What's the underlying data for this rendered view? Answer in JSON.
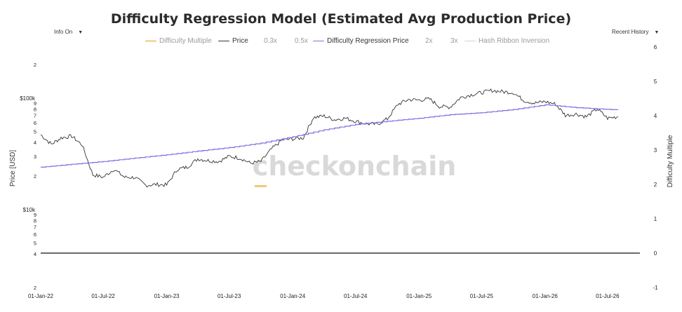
{
  "title": "Difficulty Regression Model (Estimated Avg Production Price)",
  "controls": {
    "info": "Info On",
    "history": "Recent History"
  },
  "watermark": "checkonchain",
  "colors": {
    "price": "#333333",
    "regression": "#7b6ee6",
    "difficulty_multiple": "#f3c77a",
    "zero_line": "#111111"
  },
  "chart_data": {
    "type": "line",
    "title": "Difficulty Regression Model (Estimated Avg Production Price)",
    "ylabel": "Price [USD]",
    "y2label": "Difficulty Multiple",
    "yscale": "log",
    "ylim": [
      2000,
      200000
    ],
    "y2lim": [
      -1,
      6
    ],
    "xlim": [
      "2022-01-01",
      "2026-08-15"
    ],
    "x_ticks": [
      "01-Jan-22",
      "01-Jul-22",
      "01-Jan-23",
      "01-Jul-23",
      "01-Jan-24",
      "01-Jul-24",
      "01-Jan-25",
      "01-Jul-25",
      "01-Jan-26",
      "01-Jul-26"
    ],
    "y_ticks_left": [
      "2",
      "4",
      "5",
      "6",
      "7",
      "8",
      "9",
      "$10k",
      "2",
      "3",
      "4",
      "5",
      "6",
      "7",
      "8",
      "9",
      "$100k",
      "2"
    ],
    "y_ticks_right": [
      "6",
      "5",
      "4",
      "3",
      "2",
      "1",
      "0",
      "-1"
    ],
    "legend": [
      {
        "name": "Difficulty Multiple",
        "state": "muted"
      },
      {
        "name": "Price",
        "state": "active"
      },
      {
        "name": "0.3x",
        "state": "muted"
      },
      {
        "name": "0.5x",
        "state": "muted"
      },
      {
        "name": "Difficulty Regression Price",
        "state": "active"
      },
      {
        "name": "2x",
        "state": "muted"
      },
      {
        "name": "3x",
        "state": "muted"
      },
      {
        "name": "Hash Ribbon Inversion",
        "state": "muted"
      }
    ],
    "series": [
      {
        "name": "Price",
        "x": [
          "2022-01-01",
          "2022-02-01",
          "2022-03-01",
          "2022-04-01",
          "2022-05-01",
          "2022-06-01",
          "2022-07-01",
          "2022-08-01",
          "2022-09-01",
          "2022-10-01",
          "2022-11-01",
          "2022-12-01",
          "2023-01-01",
          "2023-02-01",
          "2023-03-01",
          "2023-04-01",
          "2023-05-01",
          "2023-06-01",
          "2023-07-01",
          "2023-08-01",
          "2023-09-01",
          "2023-10-01",
          "2023-11-01",
          "2023-12-01",
          "2024-01-01",
          "2024-02-01",
          "2024-03-01",
          "2024-04-01",
          "2024-05-01",
          "2024-06-01",
          "2024-07-01",
          "2024-08-01",
          "2024-09-01",
          "2024-10-01",
          "2024-11-01",
          "2024-12-01",
          "2025-01-01",
          "2025-02-01",
          "2025-03-01",
          "2025-04-01",
          "2025-05-01",
          "2025-06-01",
          "2025-07-01",
          "2025-08-01",
          "2025-09-01",
          "2025-10-01",
          "2025-11-01",
          "2025-12-01",
          "2026-01-01",
          "2026-02-01",
          "2026-03-01",
          "2026-04-01",
          "2026-05-01",
          "2026-06-01",
          "2026-07-01",
          "2026-08-01"
        ],
        "values": [
          47000,
          38500,
          44000,
          45500,
          38000,
          20500,
          19500,
          23000,
          19500,
          19400,
          16500,
          16800,
          16600,
          23000,
          24000,
          28500,
          27500,
          27000,
          30000,
          29000,
          26000,
          27000,
          35000,
          42000,
          43000,
          44000,
          67000,
          69000,
          64000,
          66000,
          62000,
          59000,
          58000,
          65000,
          88000,
          97000,
          96000,
          98000,
          84000,
          83000,
          101000,
          107000,
          112000,
          117000,
          114000,
          112000,
          95000,
          90000,
          93000,
          88000,
          70000,
          72000,
          68000,
          80000,
          66000,
          68000
        ]
      },
      {
        "name": "Difficulty Regression Price",
        "x": [
          "2022-01-01",
          "2022-04-01",
          "2022-07-01",
          "2022-10-01",
          "2023-01-01",
          "2023-04-01",
          "2023-07-01",
          "2023-10-01",
          "2024-01-01",
          "2024-04-01",
          "2024-07-01",
          "2024-10-01",
          "2025-01-01",
          "2025-04-01",
          "2025-07-01",
          "2025-10-01",
          "2026-01-01",
          "2026-04-01",
          "2026-08-01"
        ],
        "values": [
          24000,
          25500,
          27000,
          29000,
          31000,
          33500,
          36000,
          39500,
          45000,
          52000,
          58000,
          62000,
          66000,
          71000,
          74000,
          79000,
          87000,
          82000,
          78000
        ]
      },
      {
        "name": "Difficulty Multiple",
        "x": [
          "2023-09-15",
          "2023-10-15"
        ],
        "values": [
          1.95,
          1.95
        ]
      }
    ]
  }
}
